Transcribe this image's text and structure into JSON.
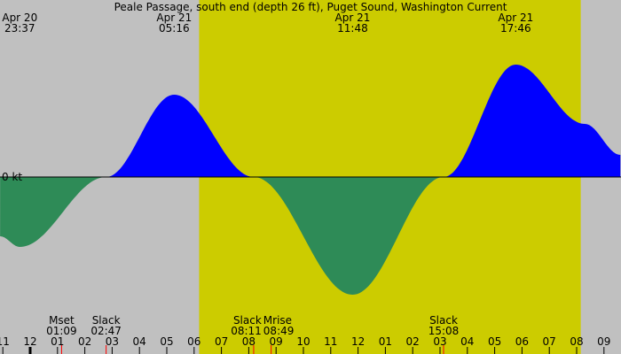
{
  "title": "Peale Passage, south end (depth 26 ft), Puget Sound, Washington Current",
  "colors": {
    "night": "#c0c0c0",
    "day": "#cccc00",
    "flood": "#0000ff",
    "ebb": "#2e8b57",
    "event_tick": "#ff0000"
  },
  "chart_data": {
    "type": "area",
    "title": "Peale Passage, south end (depth 26 ft), Puget Sound, Washington Current",
    "ylabel": "0 kt",
    "x_unit": "hours from Apr 21 00:00",
    "xlim": [
      -1.1,
      21.6
    ],
    "daylight": {
      "start": "06:11",
      "end": "20:09"
    },
    "x_ticks": [
      "11",
      "12",
      "01",
      "02",
      "03",
      "04",
      "05",
      "06",
      "07",
      "08",
      "09",
      "10",
      "11",
      "12",
      "01",
      "02",
      "03",
      "04",
      "05",
      "06",
      "07",
      "08",
      "09"
    ],
    "points": [
      [
        -1.1,
        -0.67
      ],
      [
        -0.38,
        -0.79
      ],
      [
        2.78,
        0
      ],
      [
        5.27,
        0.93
      ],
      [
        8.18,
        0
      ],
      [
        11.8,
        -1.33
      ],
      [
        15.13,
        0
      ],
      [
        17.77,
        1.27
      ],
      [
        20.3,
        0.6
      ],
      [
        21.6,
        0.25
      ]
    ],
    "peak_labels": [
      {
        "date": "Apr 20",
        "time": "23:37",
        "h": -0.38
      },
      {
        "date": "Apr 21",
        "time": "05:16",
        "h": 5.27
      },
      {
        "date": "Apr 21",
        "time": "11:48",
        "h": 11.8
      },
      {
        "date": "Apr 21",
        "time": "17:46",
        "h": 17.77
      }
    ],
    "events": [
      {
        "label": "Mset",
        "time": "01:09",
        "h": 1.15
      },
      {
        "label": "Slack",
        "time": "02:47",
        "h": 2.78
      },
      {
        "label": "Slack",
        "time": "08:11",
        "h": 8.18
      },
      {
        "label": "Mrise",
        "time": "08:49",
        "h": 8.82
      },
      {
        "label": "Slack",
        "time": "15:08",
        "h": 15.13
      }
    ]
  }
}
